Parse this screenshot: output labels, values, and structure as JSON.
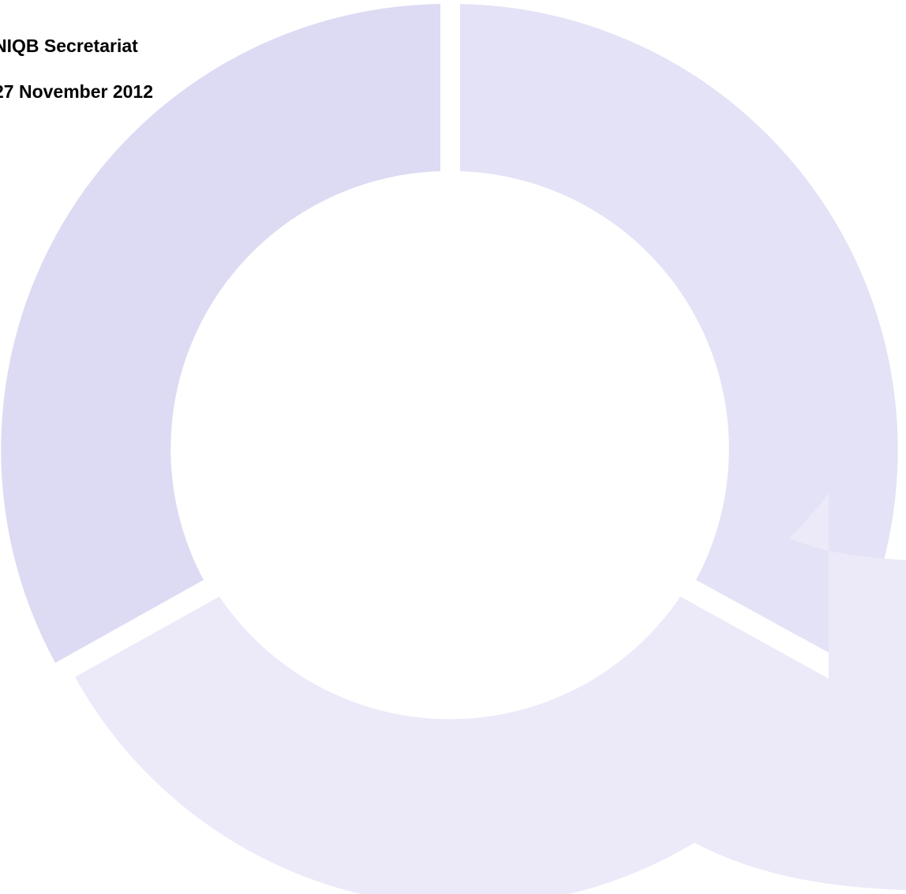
{
  "document": {
    "author": "NIQB Secretariat",
    "date": "27 November 2012"
  },
  "watermark": {
    "icon": "q-logo-icon",
    "colors": {
      "segment_top_left": "#dcdbf3",
      "segment_top_right": "#e3e2f6",
      "segment_bottom": "#eceaf9"
    }
  }
}
